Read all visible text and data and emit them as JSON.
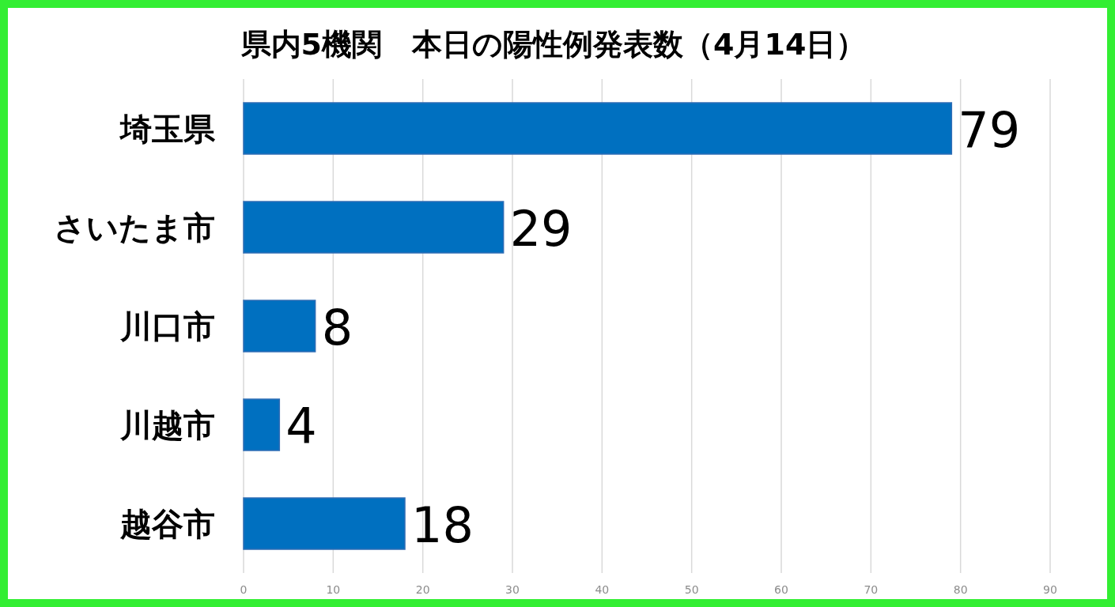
{
  "chart_data": {
    "type": "bar",
    "orientation": "horizontal",
    "title": "県内5機関　本日の陽性例発表数（4月14日）",
    "categories": [
      "埼玉県",
      "さいたま市",
      "川口市",
      "川越市",
      "越谷市"
    ],
    "values": [
      79,
      29,
      8,
      4,
      18
    ],
    "color": "#0070c0",
    "xlim": [
      0,
      90
    ],
    "xticks": [
      0,
      10,
      20,
      30,
      40,
      50,
      60,
      70,
      80,
      90
    ],
    "grid": "x",
    "data_labels": true
  }
}
